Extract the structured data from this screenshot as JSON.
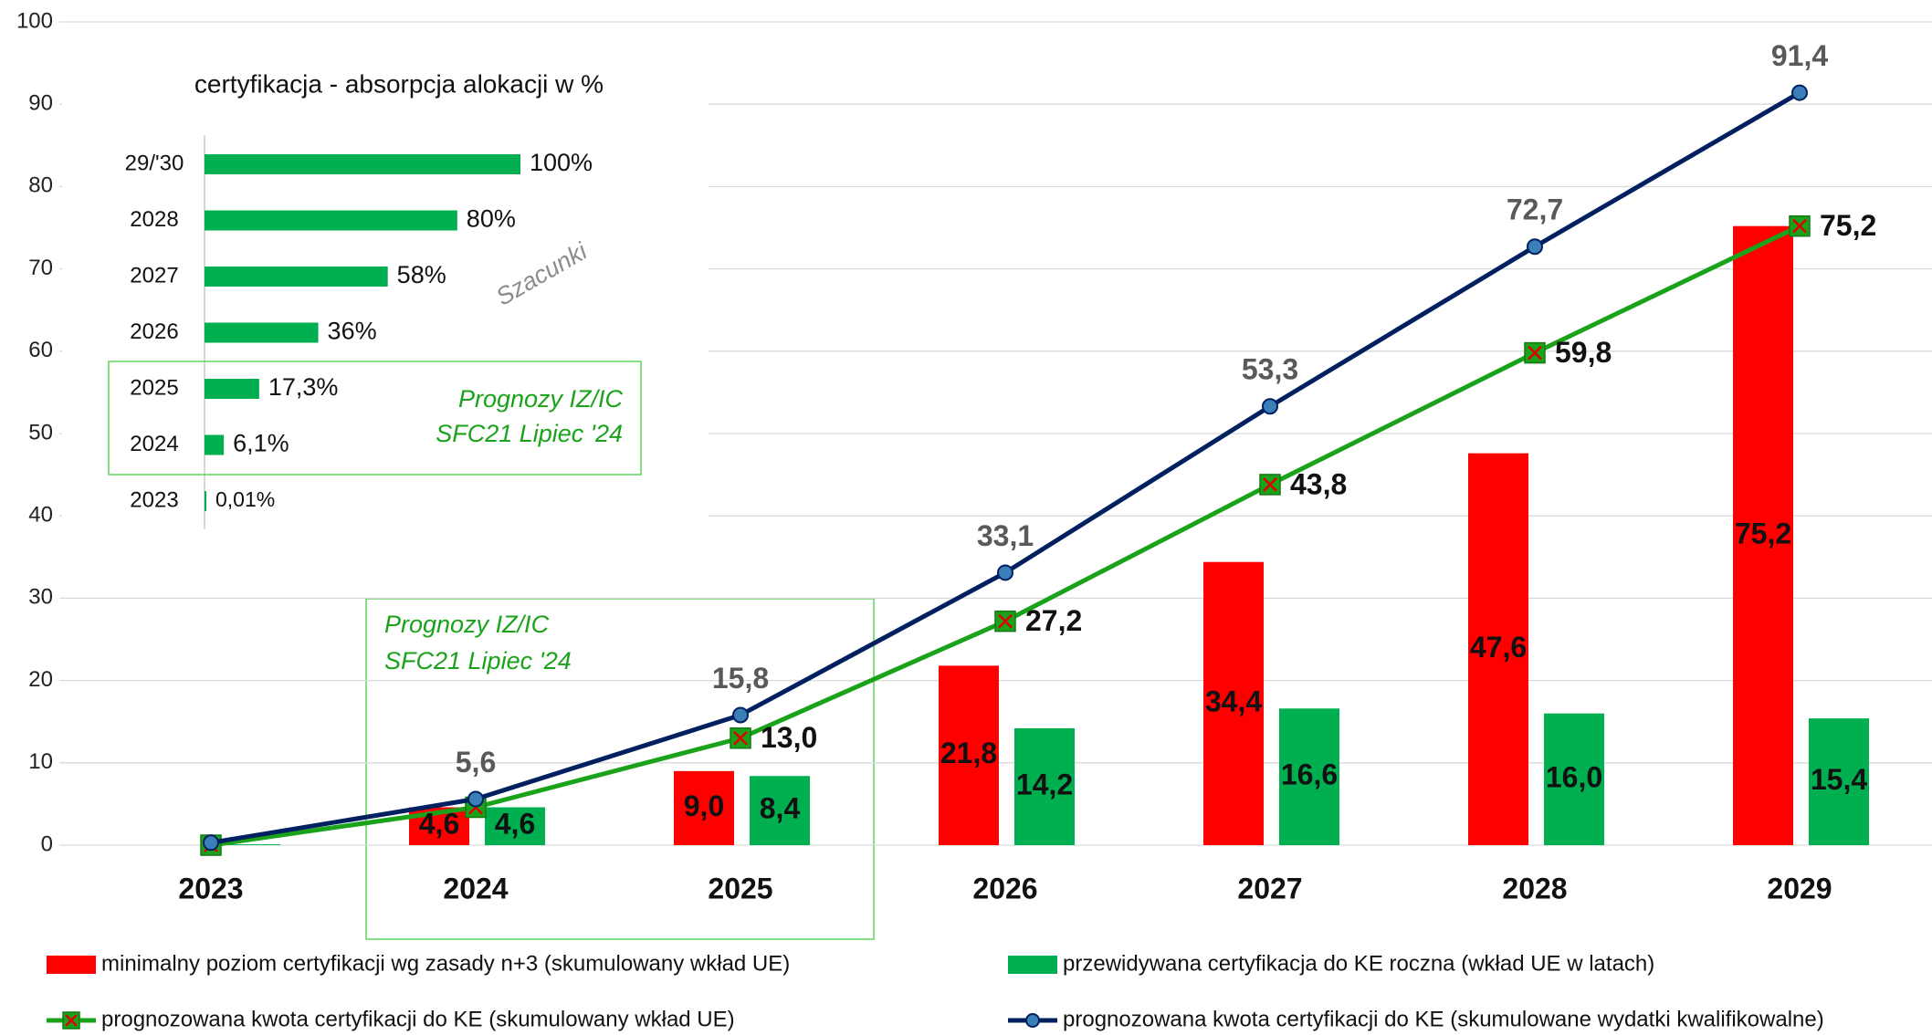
{
  "chart_data": [
    {
      "type": "bar",
      "categories": [
        "2023",
        "2024",
        "2025",
        "2026",
        "2027",
        "2028",
        "2029"
      ],
      "series": [
        {
          "name": "minimalny poziom certyfikacji wg zasady n+3 (skumulowany wkład UE)",
          "color": "#ff0000",
          "type": "bar",
          "values": [
            0,
            4.6,
            9.0,
            21.8,
            34.4,
            47.6,
            75.2
          ],
          "value_labels": [
            null,
            "4,6",
            "9,0",
            "21,8",
            "34,4",
            "47,6",
            "75,2"
          ]
        },
        {
          "name": "przewidywana certyfikacja do KE roczna (wkład UE w latach)",
          "color": "#00b050",
          "type": "bar",
          "values": [
            0.1,
            4.6,
            8.4,
            14.2,
            16.6,
            16.0,
            15.4
          ],
          "value_labels": [
            null,
            "4,6",
            "8,4",
            "14,2",
            "16,6",
            "16,0",
            "15,4"
          ]
        },
        {
          "name": "prognozowana kwota certyfikacji do KE (skumulowany wkład UE)",
          "color": "#1aa31a",
          "type": "line",
          "marker": "x-square",
          "values": [
            0,
            4.6,
            13.0,
            27.2,
            43.8,
            59.8,
            75.2
          ],
          "value_labels": [
            null,
            null,
            "13,0",
            "27,2",
            "43,8",
            "59,8",
            "75,2"
          ]
        },
        {
          "name": "prognozowana kwota certyfikacji do KE (skumulowane wydatki kwalifikowalne)",
          "color": "#002060",
          "type": "line",
          "marker": "circle",
          "values": [
            0.3,
            5.6,
            15.8,
            33.1,
            53.3,
            72.7,
            91.4
          ],
          "value_labels": [
            null,
            "5,6",
            "15,8",
            "33,1",
            "53,3",
            "72,7",
            "91,4"
          ]
        }
      ],
      "ylim": [
        0,
        100
      ],
      "yticks": [
        0,
        10,
        20,
        30,
        40,
        50,
        60,
        70,
        80,
        90,
        100
      ],
      "grid": true,
      "legend": "bottom",
      "annotation": [
        "Prognozy IZ/IC",
        "SFC21 Lipiec '24"
      ]
    },
    {
      "type": "barh",
      "title": "certyfikacja - absorpcja alokacji w %",
      "categories": [
        "29/'30",
        "2028",
        "2027",
        "2026",
        "2025",
        "2024",
        "2023"
      ],
      "values": [
        100,
        80,
        58,
        36,
        17.3,
        6.1,
        0.01
      ],
      "value_labels": [
        "100%",
        "80%",
        "58%",
        "36%",
        "17,3%",
        "6,1%",
        "0,01%"
      ],
      "color": "#00b050",
      "xlim": [
        0,
        100
      ],
      "estimate_note": "Szacunki",
      "annotation": [
        "Prognozy IZ/IC",
        "SFC21 Lipiec '24"
      ]
    }
  ]
}
